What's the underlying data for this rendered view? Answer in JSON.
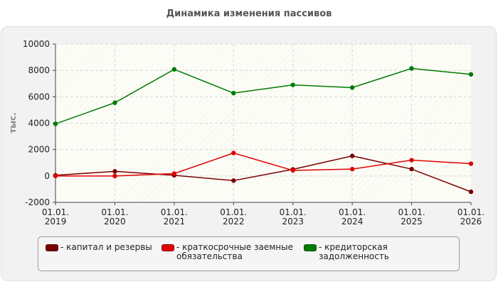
{
  "chart_data": {
    "type": "line",
    "title": "Динамика изменения пассивов",
    "ylabel": "тыс.",
    "xlabel": "",
    "categories": [
      "01.01.\n2019",
      "01.01.\n2020",
      "01.01.\n2021",
      "01.01.\n2022",
      "01.01.\n2023",
      "01.01.\n2024",
      "01.01.\n2025",
      "01.01.\n2026"
    ],
    "ylim": [
      -2000,
      10000
    ],
    "yticks": [
      -2000,
      0,
      2000,
      4000,
      6000,
      8000,
      10000
    ],
    "grid": true,
    "legend_position": "bottom",
    "series": [
      {
        "name": "- капитал и резервы",
        "color": "#7a0000",
        "values": [
          50,
          350,
          50,
          -350,
          500,
          1520,
          520,
          -1200
        ]
      },
      {
        "name": "- краткосрочные заемные\nобязательства",
        "color": "#e00000",
        "values": [
          0,
          0,
          180,
          1740,
          420,
          520,
          1200,
          930
        ]
      },
      {
        "name": "- кредиторская задолженность",
        "color": "#007a00",
        "values": [
          3950,
          5550,
          8080,
          6280,
          6900,
          6700,
          8150,
          7700
        ]
      }
    ]
  }
}
